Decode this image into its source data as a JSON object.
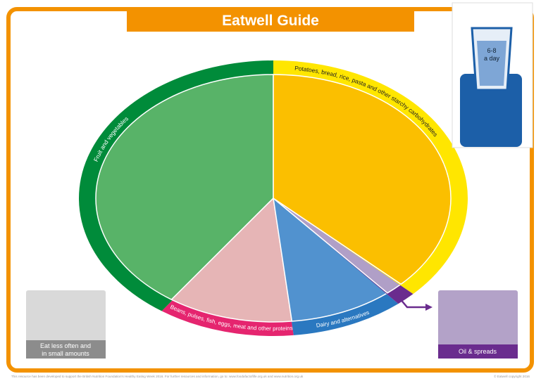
{
  "header": {
    "title": "Eatwell Guide"
  },
  "water": {
    "lines": [
      "6-8",
      "a day"
    ]
  },
  "segments": {
    "fruit": "Fruit and vegetables",
    "starchy": "Potatoes, bread, rice, pasta and other starchy carbohydrates",
    "proteins": "Beans, pulses, fish, eggs, meat and other proteins",
    "dairy": "Dairy and alternatives"
  },
  "boxes": {
    "eat_less": [
      "Eat less often and",
      "in small amounts"
    ],
    "oils": "Oil & spreads"
  },
  "footer": {
    "left": "This resource has been developed to support the British Nutrition Foundation's Healthy Eating Week 2016. For further resources and information, go to: www.foodafactoflife.org.uk and www.nutrition.org.uk",
    "right": "© Eatwell copyright 2016"
  }
}
